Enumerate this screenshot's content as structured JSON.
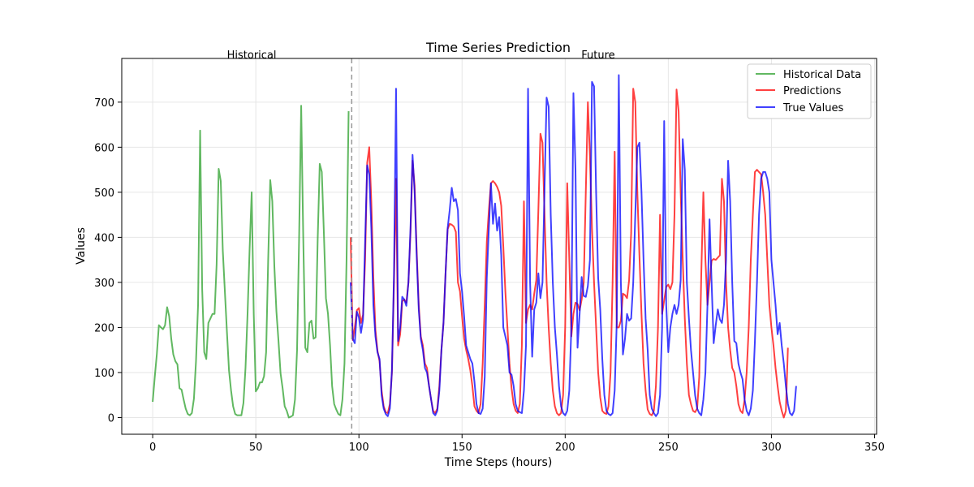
{
  "chart_data": {
    "type": "line",
    "title": "Time Series Prediction",
    "xlabel": "Time Steps (hours)",
    "ylabel": "Values",
    "xlim": [
      -15,
      351
    ],
    "ylim": [
      -37,
      797
    ],
    "xticks": [
      0,
      50,
      100,
      150,
      200,
      250,
      300,
      350
    ],
    "yticks": [
      0,
      100,
      200,
      300,
      400,
      500,
      600,
      700
    ],
    "grid": true,
    "legend_position": "top-right",
    "split_x": 96.5,
    "annotations": [
      {
        "text": "Historical",
        "x": 48
      },
      {
        "text": "Future",
        "x": 216
      }
    ],
    "series": [
      {
        "name": "Historical Data",
        "color": "#2ca02c",
        "x_start": 0,
        "values": [
          35,
          90,
          140,
          205,
          200,
          196,
          205,
          245,
          225,
          175,
          140,
          125,
          118,
          65,
          62,
          40,
          20,
          8,
          5,
          10,
          42,
          125,
          250,
          637,
          285,
          145,
          130,
          210,
          220,
          230,
          230,
          340,
          552,
          525,
          370,
          280,
          190,
          105,
          60,
          25,
          8,
          5,
          5,
          5,
          32,
          110,
          230,
          375,
          500,
          230,
          58,
          65,
          78,
          78,
          92,
          145,
          350,
          527,
          480,
          335,
          235,
          170,
          98,
          65,
          25,
          15,
          0,
          2,
          5,
          40,
          150,
          400,
          692,
          400,
          155,
          145,
          210,
          215,
          175,
          178,
          395,
          563,
          545,
          410,
          265,
          230,
          160,
          70,
          30,
          18,
          8,
          5,
          40,
          120,
          350,
          680
        ]
      },
      {
        "name": "Predictions",
        "color": "#ff0000",
        "x_start": 96,
        "values": [
          400,
          172,
          200,
          238,
          243,
          210,
          228,
          350,
          565,
          600,
          480,
          310,
          195,
          148,
          125,
          60,
          25,
          12,
          10,
          30,
          100,
          300,
          530,
          160,
          185,
          258,
          262,
          255,
          300,
          410,
          570,
          515,
          370,
          250,
          180,
          160,
          120,
          110,
          70,
          40,
          15,
          10,
          20,
          70,
          150,
          210,
          320,
          418,
          430,
          428,
          424,
          412,
          300,
          280,
          225,
          175,
          150,
          130,
          105,
          70,
          25,
          15,
          10,
          30,
          120,
          250,
          390,
          460,
          520,
          525,
          520,
          512,
          500,
          470,
          380,
          280,
          200,
          120,
          65,
          30,
          15,
          10,
          30,
          160,
          480,
          210,
          240,
          250,
          240,
          275,
          305,
          460,
          630,
          610,
          450,
          300,
          200,
          120,
          60,
          25,
          10,
          5,
          10,
          50,
          200,
          520,
          350,
          180,
          230,
          255,
          252,
          238,
          262,
          300,
          500,
          700,
          580,
          420,
          300,
          200,
          100,
          45,
          15,
          10,
          8,
          25,
          100,
          300,
          590,
          200,
          200,
          215,
          275,
          272,
          265,
          305,
          410,
          730,
          700,
          500,
          360,
          230,
          120,
          60,
          18,
          8,
          5,
          15,
          70,
          200,
          450,
          230,
          260,
          290,
          295,
          285,
          300,
          450,
          728,
          680,
          500,
          350,
          220,
          120,
          50,
          30,
          15,
          12,
          20,
          90,
          320,
          500,
          350,
          250,
          300,
          348,
          352,
          350,
          355,
          360,
          530,
          480,
          300,
          200,
          150,
          110,
          100,
          70,
          30,
          15,
          10,
          40,
          100,
          200,
          350,
          450,
          545,
          550,
          545,
          540,
          500,
          450,
          350,
          250,
          200,
          160,
          110,
          70,
          35,
          15,
          0,
          15,
          155
        ]
      },
      {
        "name": "True Values",
        "color": "#0000ff",
        "x_start": 96,
        "values": [
          300,
          175,
          165,
          235,
          222,
          188,
          218,
          390,
          560,
          540,
          420,
          250,
          180,
          145,
          130,
          50,
          20,
          8,
          3,
          20,
          105,
          320,
          730,
          170,
          200,
          268,
          262,
          248,
          300,
          420,
          583,
          500,
          360,
          240,
          175,
          150,
          110,
          100,
          70,
          40,
          10,
          5,
          15,
          60,
          150,
          210,
          320,
          420,
          460,
          510,
          480,
          485,
          460,
          320,
          280,
          225,
          160,
          145,
          130,
          120,
          80,
          30,
          10,
          8,
          20,
          90,
          310,
          420,
          520,
          430,
          475,
          415,
          445,
          360,
          200,
          180,
          160,
          100,
          95,
          70,
          30,
          15,
          12,
          10,
          60,
          160,
          730,
          300,
          135,
          240,
          255,
          320,
          265,
          300,
          510,
          710,
          690,
          450,
          300,
          200,
          140,
          70,
          25,
          10,
          5,
          15,
          60,
          200,
          720,
          550,
          155,
          230,
          312,
          270,
          268,
          292,
          350,
          745,
          735,
          500,
          310,
          240,
          130,
          50,
          15,
          8,
          5,
          10,
          60,
          210,
          760,
          300,
          140,
          175,
          230,
          215,
          220,
          300,
          450,
          600,
          610,
          500,
          350,
          220,
          150,
          50,
          20,
          10,
          3,
          10,
          50,
          200,
          658,
          250,
          145,
          200,
          230,
          250,
          230,
          250,
          305,
          618,
          550,
          300,
          220,
          150,
          100,
          50,
          20,
          10,
          5,
          40,
          100,
          250,
          440,
          300,
          165,
          205,
          240,
          218,
          210,
          250,
          350,
          570,
          480,
          300,
          170,
          165,
          120,
          100,
          85,
          40,
          15,
          5,
          20,
          60,
          170,
          300,
          450,
          530,
          545,
          545,
          530,
          500,
          350,
          300,
          250,
          185,
          210,
          160,
          120,
          70,
          30,
          10,
          5,
          15,
          70
        ]
      }
    ]
  }
}
